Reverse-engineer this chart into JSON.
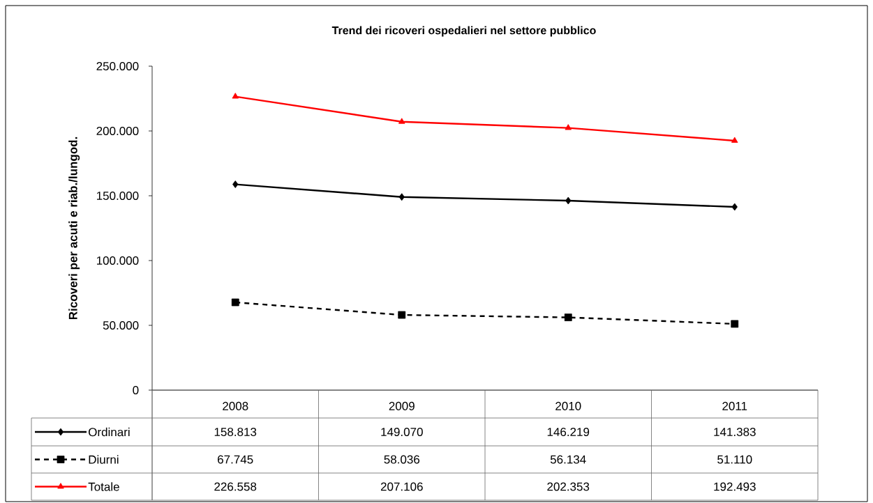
{
  "chart_data": {
    "type": "line",
    "title": "Trend dei ricoveri ospedalieri nel settore pubblico",
    "ylabel": "Ricoveri per acuti e riab./lungod.",
    "categories": [
      "2008",
      "2009",
      "2010",
      "2011"
    ],
    "series": [
      {
        "name": "Ordinari",
        "color": "#000000",
        "marker": "diamond",
        "line_style": "solid",
        "values": [
          158813,
          149070,
          146219,
          141383
        ],
        "value_labels": [
          "158.813",
          "149.070",
          "146.219",
          "141.383"
        ]
      },
      {
        "name": "Diurni",
        "color": "#000000",
        "marker": "square",
        "line_style": "dashed",
        "values": [
          67745,
          58036,
          56134,
          51110
        ],
        "value_labels": [
          "67.745",
          "58.036",
          "56.134",
          "51.110"
        ]
      },
      {
        "name": "Totale",
        "color": "#ff0000",
        "marker": "triangle",
        "line_style": "solid",
        "values": [
          226558,
          207106,
          202353,
          192493
        ],
        "value_labels": [
          "226.558",
          "207.106",
          "202.353",
          "192.493"
        ]
      }
    ],
    "ylim": [
      0,
      250000
    ],
    "yticks": [
      0,
      {
        "value": 50000,
        "label": "50.000"
      },
      {
        "value": 100000,
        "label": "100.000"
      },
      {
        "value": 150000,
        "label": "150.000"
      },
      {
        "value": 200000,
        "label": "200.000"
      },
      {
        "value": 250000,
        "label": "250.000"
      }
    ],
    "grid": false,
    "legend": "bottom"
  }
}
